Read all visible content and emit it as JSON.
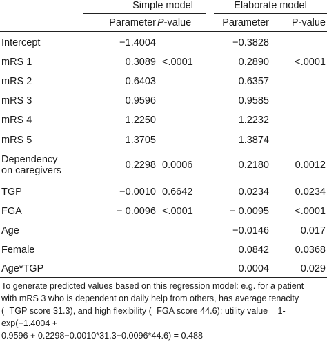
{
  "header": {
    "group_simple": "Simple model",
    "group_elaborate": "Elaborate model",
    "col_param_1": "Parameter",
    "col_p_1_italic": "P",
    "col_p_1_rest": "-value",
    "col_param_2": "Parameter",
    "col_p_2": "P-value"
  },
  "rows": [
    {
      "label": "Intercept",
      "s_param": "−1.4004",
      "s_p": "",
      "e_param": "−0.3828",
      "e_p": ""
    },
    {
      "label": "mRS 1",
      "s_param": "0.3089",
      "s_p": "<.0001",
      "e_param": "0.2890",
      "e_p": "<.0001"
    },
    {
      "label": "mRS 2",
      "s_param": "0.6403",
      "s_p": "",
      "e_param": "0.6357",
      "e_p": ""
    },
    {
      "label": "mRS 3",
      "s_param": "0.9596",
      "s_p": "",
      "e_param": "0.9585",
      "e_p": ""
    },
    {
      "label": "mRS 4",
      "s_param": "1.2250",
      "s_p": "",
      "e_param": "1.2232",
      "e_p": ""
    },
    {
      "label": "mRS 5",
      "s_param": "1.3705",
      "s_p": "",
      "e_param": "1.3874",
      "e_p": ""
    },
    {
      "label": "Dependency",
      "label2": "on caregivers",
      "s_param": "0.2298",
      "s_p": "0.0006",
      "e_param": "0.2180",
      "e_p": "0.0012"
    },
    {
      "label": "TGP",
      "s_param": "−0.0010",
      "s_p": "0.6642",
      "e_param": "0.0234",
      "e_p": "0.0234"
    },
    {
      "label": "FGA",
      "s_param": "− 0.0096",
      "s_p": "<.0001",
      "e_param": "− 0.0095",
      "e_p": "<.0001"
    },
    {
      "label": "Age",
      "s_param": "",
      "s_p": "",
      "e_param": "−0.0146",
      "e_p": "0.017"
    },
    {
      "label": "Female",
      "s_param": "",
      "s_p": "",
      "e_param": "0.0842",
      "e_p": "0.0368"
    },
    {
      "label": "Age*TGP",
      "s_param": "",
      "s_p": "",
      "e_param": "0.0004",
      "e_p": "0.029"
    }
  ],
  "footnote": {
    "line1": "To generate predicted values based on this regression model: e.g. for a patient",
    "line2": "with mRS 3 who is dependent on daily help from others, has average tenacity",
    "line3": "(=TGP score 31.3), and high flexibility (=FGA score 44.6): utility value = 1-exp(−1.4004 +",
    "line4": "0.9596 + 0.2298−0.0010*31.3−0.0096*44.6) = 0.488"
  }
}
